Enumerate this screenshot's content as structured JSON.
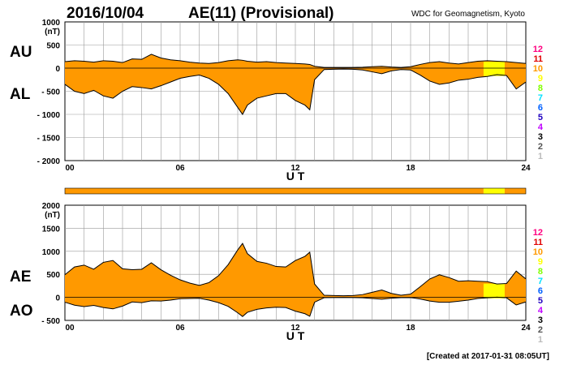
{
  "header": {
    "date": "2016/10/04",
    "title": "AE(11) (Provisional)",
    "org": "WDC for Geomagnetism, Kyoto"
  },
  "footer": {
    "created": "[Created at 2017-01-31 08:05UT]"
  },
  "colors": {
    "fill": "#FF9900",
    "highlight": "#FFFF00",
    "grid": "#999999",
    "trace": "#000000"
  },
  "legend": [
    {
      "label": "12",
      "color": "#FF0080"
    },
    {
      "label": "11",
      "color": "#E00000"
    },
    {
      "label": "10",
      "color": "#FF9900"
    },
    {
      "label": "9",
      "color": "#FFFF00"
    },
    {
      "label": "8",
      "color": "#80FF00"
    },
    {
      "label": "7",
      "color": "#00E0FF"
    },
    {
      "label": "6",
      "color": "#0060FF"
    },
    {
      "label": "5",
      "color": "#2000C0"
    },
    {
      "label": "4",
      "color": "#C000FF"
    },
    {
      "label": "3",
      "color": "#000000"
    },
    {
      "label": "2",
      "color": "#555555"
    },
    {
      "label": "1",
      "color": "#BBBBBB"
    }
  ],
  "station_bar": [
    {
      "from": 0,
      "to": 21.8,
      "color": "#FF9900"
    },
    {
      "from": 21.8,
      "to": 22.9,
      "color": "#FFFF00"
    },
    {
      "from": 22.9,
      "to": 24,
      "color": "#FF9900"
    }
  ],
  "chart_data": [
    {
      "type": "area",
      "panel": "top",
      "left_labels": [
        "AU",
        "AL"
      ],
      "unit": "(nT)",
      "xlabel": "U T",
      "x_ticks": [
        "00",
        "06",
        "12",
        "18",
        "24"
      ],
      "y_ticks": [
        "1000",
        "500",
        "0",
        "- 500",
        "- 1000",
        "- 1500",
        "- 2000"
      ],
      "y_tick_values": [
        1000,
        500,
        0,
        -500,
        -1000,
        -1500,
        -2000
      ],
      "xlim": [
        0,
        24
      ],
      "ylim": [
        -2000,
        1000
      ],
      "x": [
        0,
        0.5,
        1,
        1.5,
        2,
        2.5,
        3,
        3.5,
        4,
        4.5,
        5,
        5.5,
        6,
        6.5,
        7,
        7.5,
        8,
        8.5,
        9,
        9.25,
        9.5,
        10,
        10.5,
        11,
        11.5,
        12,
        12.5,
        12.75,
        13,
        13.5,
        14,
        14.5,
        15,
        15.5,
        16,
        16.5,
        17,
        17.5,
        18,
        18.5,
        19,
        19.5,
        20,
        20.5,
        21,
        21.5,
        22,
        22.5,
        23,
        23.5,
        24
      ],
      "series": [
        {
          "name": "AU",
          "values": [
            140,
            160,
            150,
            130,
            160,
            150,
            120,
            200,
            190,
            300,
            220,
            180,
            160,
            130,
            110,
            100,
            120,
            160,
            180,
            170,
            150,
            130,
            140,
            120,
            110,
            100,
            90,
            80,
            40,
            15,
            15,
            15,
            15,
            20,
            30,
            40,
            25,
            15,
            30,
            80,
            120,
            140,
            110,
            90,
            120,
            150,
            160,
            150,
            140,
            120,
            100
          ]
        },
        {
          "name": "AL",
          "values": [
            -350,
            -500,
            -550,
            -480,
            -600,
            -650,
            -500,
            -400,
            -420,
            -450,
            -380,
            -300,
            -220,
            -180,
            -150,
            -220,
            -350,
            -550,
            -850,
            -1000,
            -800,
            -650,
            -600,
            -550,
            -550,
            -700,
            -800,
            -900,
            -250,
            -30,
            -25,
            -20,
            -25,
            -40,
            -80,
            -120,
            -60,
            -30,
            -40,
            -150,
            -280,
            -350,
            -320,
            -260,
            -240,
            -200,
            -180,
            -140,
            -160,
            -450,
            -300
          ]
        }
      ]
    },
    {
      "type": "area",
      "panel": "bottom",
      "left_labels": [
        "AE",
        "AO"
      ],
      "unit": "(nT)",
      "xlabel": "U T",
      "x_ticks": [
        "00",
        "06",
        "12",
        "18",
        "24"
      ],
      "y_ticks": [
        "2000",
        "1500",
        "1000",
        "500",
        "0",
        "- 500"
      ],
      "y_tick_values": [
        2000,
        1500,
        1000,
        500,
        0,
        -500
      ],
      "xlim": [
        0,
        24
      ],
      "ylim": [
        -500,
        2000
      ],
      "x": [
        0,
        0.5,
        1,
        1.5,
        2,
        2.5,
        3,
        3.5,
        4,
        4.5,
        5,
        5.5,
        6,
        6.5,
        7,
        7.5,
        8,
        8.5,
        9,
        9.25,
        9.5,
        10,
        10.5,
        11,
        11.5,
        12,
        12.5,
        12.75,
        13,
        13.5,
        14,
        14.5,
        15,
        15.5,
        16,
        16.5,
        17,
        17.5,
        18,
        18.5,
        19,
        19.5,
        20,
        20.5,
        21,
        21.5,
        22,
        22.5,
        23,
        23.5,
        24
      ],
      "series": [
        {
          "name": "AE",
          "values": [
            490,
            660,
            700,
            610,
            760,
            800,
            620,
            600,
            610,
            750,
            600,
            480,
            380,
            310,
            260,
            320,
            470,
            710,
            1030,
            1170,
            950,
            780,
            740,
            670,
            660,
            800,
            890,
            980,
            290,
            45,
            40,
            35,
            40,
            60,
            110,
            160,
            85,
            45,
            70,
            230,
            400,
            490,
            430,
            350,
            360,
            350,
            340,
            290,
            300,
            570,
            400
          ]
        },
        {
          "name": "AO",
          "values": [
            -105,
            -170,
            -200,
            -175,
            -220,
            -250,
            -190,
            -100,
            -115,
            -75,
            -80,
            -60,
            -30,
            -25,
            -20,
            -60,
            -115,
            -195,
            -335,
            -415,
            -325,
            -260,
            -230,
            -215,
            -220,
            -300,
            -355,
            -410,
            -105,
            -7,
            -5,
            -2,
            -5,
            -10,
            -25,
            -40,
            -17,
            -7,
            -5,
            -35,
            -80,
            -105,
            -105,
            -85,
            -60,
            -25,
            -10,
            5,
            -10,
            -165,
            -100
          ]
        }
      ]
    }
  ]
}
